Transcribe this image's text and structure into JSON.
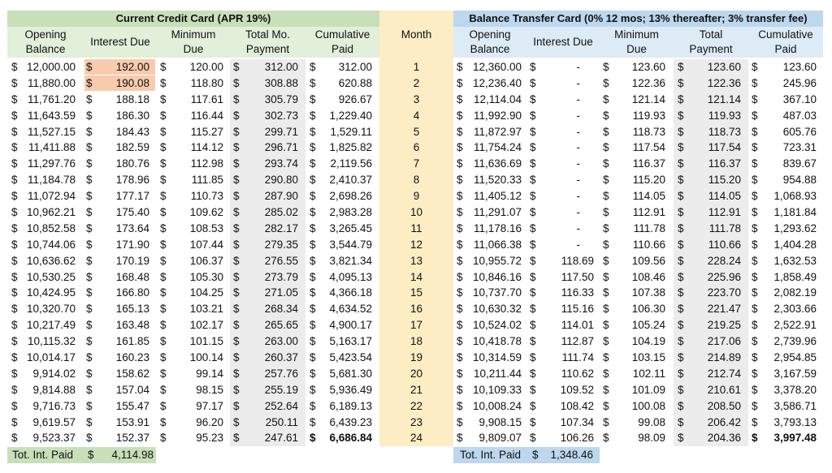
{
  "left_title": "Current Credit Card (APR 19%)",
  "right_title": "Balance Transfer Card (0% 12 mos; 13% thereafter; 3% transfer fee)",
  "month_header": "Month",
  "left_headers": {
    "opening": [
      "Opening",
      "Balance"
    ],
    "interest": "Interest Due",
    "minimum": [
      "Minimum",
      "Due"
    ],
    "total": [
      "Total Mo.",
      "Payment"
    ],
    "cumulative": [
      "Cumulative",
      "Paid"
    ]
  },
  "right_headers": {
    "opening": [
      "Opening",
      "Balance"
    ],
    "interest": "Interest Due",
    "minimum": [
      "Minimum",
      "Due"
    ],
    "total": [
      "Total",
      "Payment"
    ],
    "cumulative": [
      "Cumulative",
      "Paid"
    ]
  },
  "currency_symbol": "$",
  "rows": [
    {
      "m": "1",
      "lo": "12,000.00",
      "li": "192.00",
      "lm": "120.00",
      "lt": "312.00",
      "lc": "312.00",
      "ro": "12,360.00",
      "ri": "-",
      "rm": "123.60",
      "rt": "123.60",
      "rc": "123.60"
    },
    {
      "m": "2",
      "lo": "11,880.00",
      "li": "190.08",
      "lm": "118.80",
      "lt": "308.88",
      "lc": "620.88",
      "ro": "12,236.40",
      "ri": "-",
      "rm": "122.36",
      "rt": "122.36",
      "rc": "245.96"
    },
    {
      "m": "3",
      "lo": "11,761.20",
      "li": "188.18",
      "lm": "117.61",
      "lt": "305.79",
      "lc": "926.67",
      "ro": "12,114.04",
      "ri": "-",
      "rm": "121.14",
      "rt": "121.14",
      "rc": "367.10"
    },
    {
      "m": "4",
      "lo": "11,643.59",
      "li": "186.30",
      "lm": "116.44",
      "lt": "302.73",
      "lc": "1,229.40",
      "ro": "11,992.90",
      "ri": "-",
      "rm": "119.93",
      "rt": "119.93",
      "rc": "487.03"
    },
    {
      "m": "5",
      "lo": "11,527.15",
      "li": "184.43",
      "lm": "115.27",
      "lt": "299.71",
      "lc": "1,529.11",
      "ro": "11,872.97",
      "ri": "-",
      "rm": "118.73",
      "rt": "118.73",
      "rc": "605.76"
    },
    {
      "m": "6",
      "lo": "11,411.88",
      "li": "182.59",
      "lm": "114.12",
      "lt": "296.71",
      "lc": "1,825.82",
      "ro": "11,754.24",
      "ri": "-",
      "rm": "117.54",
      "rt": "117.54",
      "rc": "723.31"
    },
    {
      "m": "7",
      "lo": "11,297.76",
      "li": "180.76",
      "lm": "112.98",
      "lt": "293.74",
      "lc": "2,119.56",
      "ro": "11,636.69",
      "ri": "-",
      "rm": "116.37",
      "rt": "116.37",
      "rc": "839.67"
    },
    {
      "m": "8",
      "lo": "11,184.78",
      "li": "178.96",
      "lm": "111.85",
      "lt": "290.80",
      "lc": "2,410.37",
      "ro": "11,520.33",
      "ri": "-",
      "rm": "115.20",
      "rt": "115.20",
      "rc": "954.88"
    },
    {
      "m": "9",
      "lo": "11,072.94",
      "li": "177.17",
      "lm": "110.73",
      "lt": "287.90",
      "lc": "2,698.26",
      "ro": "11,405.12",
      "ri": "-",
      "rm": "114.05",
      "rt": "114.05",
      "rc": "1,068.93"
    },
    {
      "m": "10",
      "lo": "10,962.21",
      "li": "175.40",
      "lm": "109.62",
      "lt": "285.02",
      "lc": "2,983.28",
      "ro": "11,291.07",
      "ri": "-",
      "rm": "112.91",
      "rt": "112.91",
      "rc": "1,181.84"
    },
    {
      "m": "11",
      "lo": "10,852.58",
      "li": "173.64",
      "lm": "108.53",
      "lt": "282.17",
      "lc": "3,265.45",
      "ro": "11,178.16",
      "ri": "-",
      "rm": "111.78",
      "rt": "111.78",
      "rc": "1,293.62"
    },
    {
      "m": "12",
      "lo": "10,744.06",
      "li": "171.90",
      "lm": "107.44",
      "lt": "279.35",
      "lc": "3,544.79",
      "ro": "11,066.38",
      "ri": "-",
      "rm": "110.66",
      "rt": "110.66",
      "rc": "1,404.28"
    },
    {
      "m": "13",
      "lo": "10,636.62",
      "li": "170.19",
      "lm": "106.37",
      "lt": "276.55",
      "lc": "3,821.34",
      "ro": "10,955.72",
      "ri": "118.69",
      "rm": "109.56",
      "rt": "228.24",
      "rc": "1,632.53"
    },
    {
      "m": "14",
      "lo": "10,530.25",
      "li": "168.48",
      "lm": "105.30",
      "lt": "273.79",
      "lc": "4,095.13",
      "ro": "10,846.16",
      "ri": "117.50",
      "rm": "108.46",
      "rt": "225.96",
      "rc": "1,858.49"
    },
    {
      "m": "15",
      "lo": "10,424.95",
      "li": "166.80",
      "lm": "104.25",
      "lt": "271.05",
      "lc": "4,366.18",
      "ro": "10,737.70",
      "ri": "116.33",
      "rm": "107.38",
      "rt": "223.70",
      "rc": "2,082.19"
    },
    {
      "m": "16",
      "lo": "10,320.70",
      "li": "165.13",
      "lm": "103.21",
      "lt": "268.34",
      "lc": "4,634.52",
      "ro": "10,630.32",
      "ri": "115.16",
      "rm": "106.30",
      "rt": "221.47",
      "rc": "2,303.66"
    },
    {
      "m": "17",
      "lo": "10,217.49",
      "li": "163.48",
      "lm": "102.17",
      "lt": "265.65",
      "lc": "4,900.17",
      "ro": "10,524.02",
      "ri": "114.01",
      "rm": "105.24",
      "rt": "219.25",
      "rc": "2,522.91"
    },
    {
      "m": "18",
      "lo": "10,115.32",
      "li": "161.85",
      "lm": "101.15",
      "lt": "263.00",
      "lc": "5,163.17",
      "ro": "10,418.78",
      "ri": "112.87",
      "rm": "104.19",
      "rt": "217.06",
      "rc": "2,739.96"
    },
    {
      "m": "19",
      "lo": "10,014.17",
      "li": "160.23",
      "lm": "100.14",
      "lt": "260.37",
      "lc": "5,423.54",
      "ro": "10,314.59",
      "ri": "111.74",
      "rm": "103.15",
      "rt": "214.89",
      "rc": "2,954.85"
    },
    {
      "m": "20",
      "lo": "9,914.02",
      "li": "158.62",
      "lm": "99.14",
      "lt": "257.76",
      "lc": "5,681.30",
      "ro": "10,211.44",
      "ri": "110.62",
      "rm": "102.11",
      "rt": "212.74",
      "rc": "3,167.59"
    },
    {
      "m": "21",
      "lo": "9,814.88",
      "li": "157.04",
      "lm": "98.15",
      "lt": "255.19",
      "lc": "5,936.49",
      "ro": "10,109.33",
      "ri": "109.52",
      "rm": "101.09",
      "rt": "210.61",
      "rc": "3,378.20"
    },
    {
      "m": "22",
      "lo": "9,716.73",
      "li": "155.47",
      "lm": "97.17",
      "lt": "252.64",
      "lc": "6,189.13",
      "ro": "10,008.24",
      "ri": "108.42",
      "rm": "100.08",
      "rt": "208.50",
      "rc": "3,586.71"
    },
    {
      "m": "23",
      "lo": "9,619.57",
      "li": "153.91",
      "lm": "96.20",
      "lt": "250.11",
      "lc": "6,439.23",
      "ro": "9,908.15",
      "ri": "107.34",
      "rm": "99.08",
      "rt": "206.42",
      "rc": "3,793.13"
    },
    {
      "m": "24",
      "lo": "9,523.37",
      "li": "152.37",
      "lm": "95.23",
      "lt": "247.61",
      "lc": "6,686.84",
      "ro": "9,809.07",
      "ri": "106.26",
      "rm": "98.09",
      "rt": "204.36",
      "rc": "3,997.48"
    }
  ],
  "left_footer": {
    "label": "Tot. Int. Paid",
    "value": "4,114.98"
  },
  "right_footer": {
    "label": "Tot. Int. Paid",
    "value": "1,348.46"
  },
  "colors": {
    "left_title_bg": "#c9dfb9",
    "left_header_bg": "#e2efd9",
    "right_title_bg": "#bdd7ee",
    "right_header_bg": "#ddebf7",
    "month_bg": "#fdedc4",
    "highlight": "#f8cbad",
    "shade": "#ececec"
  }
}
